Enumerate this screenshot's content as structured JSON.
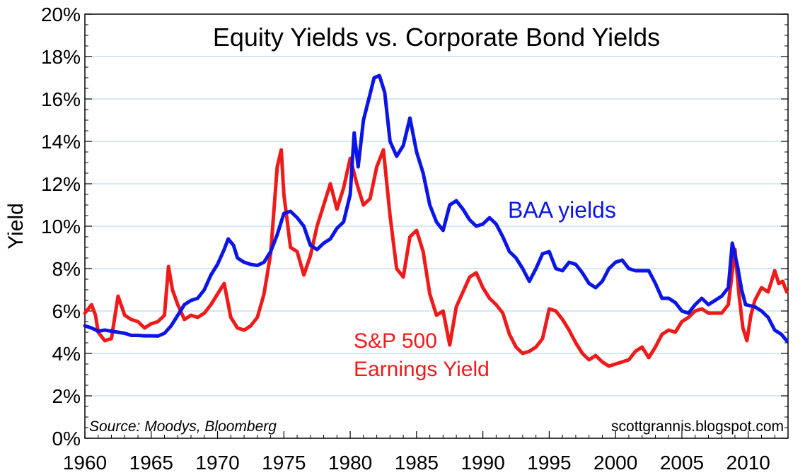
{
  "chart_data": {
    "type": "line",
    "title": "Equity Yields vs. Corporate Bond Yields",
    "ylabel": "Yield",
    "xlabel": "",
    "xlim": [
      1960,
      2013
    ],
    "ylim": [
      0,
      20
    ],
    "grid": true,
    "x_ticks": [
      "1960",
      "1965",
      "1970",
      "1975",
      "1980",
      "1985",
      "1990",
      "1995",
      "2000",
      "2005",
      "2010"
    ],
    "y_ticks": [
      "0%",
      "2%",
      "4%",
      "6%",
      "8%",
      "10%",
      "12%",
      "14%",
      "16%",
      "18%",
      "20%"
    ],
    "annotations": {
      "source": "Source: Moodys, Bloomberg",
      "credit": "scottgrannis.blogspot.com"
    },
    "series": [
      {
        "name": "BAA yields",
        "color": "#0b16e6",
        "points": [
          [
            1960.0,
            5.3
          ],
          [
            1960.5,
            5.2
          ],
          [
            1961.0,
            5.05
          ],
          [
            1961.5,
            5.1
          ],
          [
            1962.0,
            5.05
          ],
          [
            1962.5,
            5.0
          ],
          [
            1963.0,
            4.95
          ],
          [
            1963.5,
            4.85
          ],
          [
            1964.0,
            4.85
          ],
          [
            1964.5,
            4.83
          ],
          [
            1965.0,
            4.83
          ],
          [
            1965.5,
            4.82
          ],
          [
            1966.0,
            4.95
          ],
          [
            1966.5,
            5.3
          ],
          [
            1967.0,
            5.8
          ],
          [
            1967.5,
            6.3
          ],
          [
            1968.0,
            6.5
          ],
          [
            1968.5,
            6.6
          ],
          [
            1969.0,
            7.0
          ],
          [
            1969.5,
            7.7
          ],
          [
            1970.0,
            8.2
          ],
          [
            1970.5,
            8.9
          ],
          [
            1970.8,
            9.4
          ],
          [
            1971.2,
            9.1
          ],
          [
            1971.5,
            8.5
          ],
          [
            1972.0,
            8.3
          ],
          [
            1972.5,
            8.2
          ],
          [
            1973.0,
            8.15
          ],
          [
            1973.5,
            8.3
          ],
          [
            1974.0,
            8.8
          ],
          [
            1974.5,
            9.6
          ],
          [
            1975.0,
            10.6
          ],
          [
            1975.5,
            10.7
          ],
          [
            1976.0,
            10.4
          ],
          [
            1976.5,
            10.0
          ],
          [
            1977.0,
            9.1
          ],
          [
            1977.5,
            8.9
          ],
          [
            1978.0,
            9.2
          ],
          [
            1978.5,
            9.4
          ],
          [
            1979.0,
            9.9
          ],
          [
            1979.5,
            10.2
          ],
          [
            1980.0,
            11.5
          ],
          [
            1980.3,
            14.4
          ],
          [
            1980.6,
            12.8
          ],
          [
            1981.0,
            15.0
          ],
          [
            1981.4,
            16.0
          ],
          [
            1981.8,
            17.0
          ],
          [
            1982.2,
            17.1
          ],
          [
            1982.6,
            16.3
          ],
          [
            1983.0,
            14.0
          ],
          [
            1983.5,
            13.3
          ],
          [
            1984.0,
            13.8
          ],
          [
            1984.5,
            15.1
          ],
          [
            1985.0,
            13.5
          ],
          [
            1985.5,
            12.5
          ],
          [
            1986.0,
            11.0
          ],
          [
            1986.5,
            10.2
          ],
          [
            1987.0,
            9.8
          ],
          [
            1987.5,
            11.0
          ],
          [
            1988.0,
            11.2
          ],
          [
            1988.5,
            10.8
          ],
          [
            1989.0,
            10.3
          ],
          [
            1989.5,
            10.0
          ],
          [
            1990.0,
            10.1
          ],
          [
            1990.5,
            10.4
          ],
          [
            1991.0,
            10.1
          ],
          [
            1991.5,
            9.5
          ],
          [
            1992.0,
            8.8
          ],
          [
            1992.5,
            8.5
          ],
          [
            1993.0,
            8.0
          ],
          [
            1993.5,
            7.4
          ],
          [
            1994.0,
            8.0
          ],
          [
            1994.5,
            8.7
          ],
          [
            1995.0,
            8.8
          ],
          [
            1995.5,
            8.0
          ],
          [
            1996.0,
            7.9
          ],
          [
            1996.5,
            8.3
          ],
          [
            1997.0,
            8.2
          ],
          [
            1997.5,
            7.8
          ],
          [
            1998.0,
            7.3
          ],
          [
            1998.5,
            7.1
          ],
          [
            1999.0,
            7.4
          ],
          [
            1999.5,
            8.0
          ],
          [
            2000.0,
            8.3
          ],
          [
            2000.5,
            8.4
          ],
          [
            2001.0,
            8.0
          ],
          [
            2001.5,
            7.9
          ],
          [
            2002.0,
            7.9
          ],
          [
            2002.5,
            7.9
          ],
          [
            2003.0,
            7.3
          ],
          [
            2003.5,
            6.6
          ],
          [
            2004.0,
            6.6
          ],
          [
            2004.5,
            6.4
          ],
          [
            2005.0,
            6.0
          ],
          [
            2005.5,
            5.9
          ],
          [
            2006.0,
            6.3
          ],
          [
            2006.5,
            6.6
          ],
          [
            2007.0,
            6.3
          ],
          [
            2007.5,
            6.5
          ],
          [
            2008.0,
            6.7
          ],
          [
            2008.5,
            7.1
          ],
          [
            2008.8,
            9.2
          ],
          [
            2009.2,
            8.1
          ],
          [
            2009.5,
            7.0
          ],
          [
            2009.8,
            6.3
          ],
          [
            2010.5,
            6.2
          ],
          [
            2011.0,
            6.0
          ],
          [
            2011.5,
            5.7
          ],
          [
            2012.0,
            5.1
          ],
          [
            2012.5,
            4.9
          ],
          [
            2012.9,
            4.6
          ]
        ]
      },
      {
        "name": "S&P 500 Earnings Yield",
        "color": "#ef1b1b",
        "points": [
          [
            1960.0,
            5.9
          ],
          [
            1960.5,
            6.3
          ],
          [
            1960.8,
            5.8
          ],
          [
            1961.0,
            5.0
          ],
          [
            1961.5,
            4.6
          ],
          [
            1962.0,
            4.7
          ],
          [
            1962.5,
            6.7
          ],
          [
            1963.0,
            5.8
          ],
          [
            1963.5,
            5.6
          ],
          [
            1964.0,
            5.5
          ],
          [
            1964.5,
            5.2
          ],
          [
            1965.0,
            5.4
          ],
          [
            1965.5,
            5.5
          ],
          [
            1966.0,
            5.8
          ],
          [
            1966.3,
            8.1
          ],
          [
            1966.6,
            7.0
          ],
          [
            1967.0,
            6.3
          ],
          [
            1967.5,
            5.6
          ],
          [
            1968.0,
            5.8
          ],
          [
            1968.5,
            5.7
          ],
          [
            1969.0,
            5.9
          ],
          [
            1969.5,
            6.3
          ],
          [
            1970.0,
            6.8
          ],
          [
            1970.5,
            7.3
          ],
          [
            1971.0,
            5.7
          ],
          [
            1971.5,
            5.2
          ],
          [
            1972.0,
            5.1
          ],
          [
            1972.5,
            5.3
          ],
          [
            1973.0,
            5.7
          ],
          [
            1973.5,
            6.8
          ],
          [
            1974.0,
            8.7
          ],
          [
            1974.5,
            12.8
          ],
          [
            1974.8,
            13.6
          ],
          [
            1975.0,
            11.5
          ],
          [
            1975.5,
            9.0
          ],
          [
            1976.0,
            8.8
          ],
          [
            1976.5,
            7.7
          ],
          [
            1977.0,
            8.6
          ],
          [
            1977.5,
            10.0
          ],
          [
            1978.0,
            11.0
          ],
          [
            1978.5,
            12.0
          ],
          [
            1979.0,
            10.8
          ],
          [
            1979.5,
            11.8
          ],
          [
            1980.0,
            13.2
          ],
          [
            1980.5,
            12.0
          ],
          [
            1981.0,
            11.0
          ],
          [
            1981.5,
            11.3
          ],
          [
            1982.0,
            12.8
          ],
          [
            1982.5,
            13.6
          ],
          [
            1983.0,
            10.5
          ],
          [
            1983.5,
            8.0
          ],
          [
            1984.0,
            7.6
          ],
          [
            1984.5,
            9.5
          ],
          [
            1985.0,
            9.8
          ],
          [
            1985.5,
            8.8
          ],
          [
            1986.0,
            6.8
          ],
          [
            1986.5,
            5.8
          ],
          [
            1987.0,
            6.0
          ],
          [
            1987.5,
            4.4
          ],
          [
            1988.0,
            6.2
          ],
          [
            1988.5,
            6.9
          ],
          [
            1989.0,
            7.6
          ],
          [
            1989.5,
            7.8
          ],
          [
            1990.0,
            7.1
          ],
          [
            1990.5,
            6.6
          ],
          [
            1991.0,
            6.3
          ],
          [
            1991.5,
            5.9
          ],
          [
            1992.0,
            4.9
          ],
          [
            1992.5,
            4.3
          ],
          [
            1993.0,
            4.0
          ],
          [
            1993.5,
            4.1
          ],
          [
            1994.0,
            4.3
          ],
          [
            1994.5,
            4.7
          ],
          [
            1995.0,
            6.1
          ],
          [
            1995.5,
            6.0
          ],
          [
            1996.0,
            5.6
          ],
          [
            1996.5,
            5.1
          ],
          [
            1997.0,
            4.5
          ],
          [
            1997.5,
            4.0
          ],
          [
            1998.0,
            3.7
          ],
          [
            1998.5,
            3.9
          ],
          [
            1999.0,
            3.6
          ],
          [
            1999.5,
            3.4
          ],
          [
            2000.0,
            3.5
          ],
          [
            2000.5,
            3.6
          ],
          [
            2001.0,
            3.7
          ],
          [
            2001.5,
            4.1
          ],
          [
            2002.0,
            4.3
          ],
          [
            2002.5,
            3.8
          ],
          [
            2003.0,
            4.3
          ],
          [
            2003.5,
            4.9
          ],
          [
            2004.0,
            5.1
          ],
          [
            2004.5,
            5.0
          ],
          [
            2005.0,
            5.5
          ],
          [
            2005.5,
            5.7
          ],
          [
            2006.0,
            6.0
          ],
          [
            2006.5,
            6.1
          ],
          [
            2007.0,
            5.9
          ],
          [
            2007.5,
            5.9
          ],
          [
            2008.0,
            5.9
          ],
          [
            2008.5,
            6.3
          ],
          [
            2009.0,
            8.9
          ],
          [
            2009.3,
            6.8
          ],
          [
            2009.6,
            5.2
          ],
          [
            2009.9,
            4.6
          ],
          [
            2010.2,
            5.8
          ],
          [
            2010.5,
            6.5
          ],
          [
            2011.0,
            7.1
          ],
          [
            2011.5,
            6.9
          ],
          [
            2012.0,
            7.9
          ],
          [
            2012.3,
            7.3
          ],
          [
            2012.6,
            7.4
          ],
          [
            2012.9,
            6.9
          ]
        ]
      }
    ]
  },
  "legend_labels": {
    "baa": "BAA yields",
    "sp_line1": "S&P 500",
    "sp_line2": "Earnings Yield"
  }
}
